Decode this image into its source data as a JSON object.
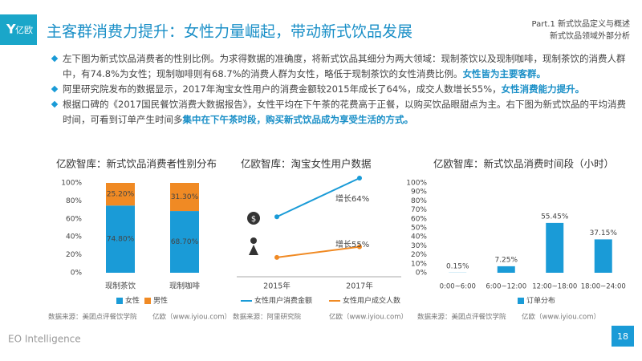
{
  "header": {
    "logo": "亿欧",
    "title": "主客群消费力提升：女性力量崛起，带动新式饮品发展",
    "part": "Part.1 新式饮品定义与概述",
    "subpart": "新式饮品领域外部分析"
  },
  "bullets": [
    [
      {
        "text": "左下图为新式饮品消费者的性别比例。为求得数据的准确度，将新式饮品其细分为两大领域：现制茶饮以及现制咖啡，现制茶饮的消费人群中，有74.8%为女性；现制咖啡则有68.7%的消费人群为女性，略低于现制茶饮的女性消费比例。",
        "bold": false
      },
      {
        "text": "女性皆为主要客群。",
        "bold": true
      }
    ],
    [
      {
        "text": "阿里研究院发布的数据显示，2017年淘宝女性用户的消费金额较2015年成长了64%，成交人数增长55%，",
        "bold": false
      },
      {
        "text": "女性消费能力提升。",
        "bold": true
      }
    ],
    [
      {
        "text": "根据口碑的《2017国民餐饮消费大数据报告》，女性平均在下午茶的花费高于正餐，以购买饮品眼甜点为主。右下图为新式饮品的平均消费时间，可看到订单产生时间多",
        "bold": false
      },
      {
        "text": "集中在下午茶时段，购买新式饮品成为享受生活的方式。",
        "bold": true
      }
    ]
  ],
  "chart_data": [
    {
      "type": "stacked_bar",
      "title": "亿欧智库：新式饮品消费者性别分布",
      "categories": [
        "现制茶饮",
        "现制咖啡"
      ],
      "series": [
        {
          "name": "女性",
          "color": "#1a9bd7",
          "values": [
            74.8,
            68.7
          ],
          "value_labels": [
            "74.80%",
            "68.70%"
          ]
        },
        {
          "name": "男性",
          "color": "#f08a24",
          "values": [
            25.2,
            31.3
          ],
          "value_labels": [
            "25.20%",
            "31.30%"
          ]
        }
      ],
      "ylim": [
        0,
        100
      ],
      "yticks": [
        {
          "value": 0,
          "label": "0%"
        },
        {
          "value": 20,
          "label": "20%"
        },
        {
          "value": 40,
          "label": "40%"
        },
        {
          "value": 60,
          "label": "60%"
        },
        {
          "value": 80,
          "label": "80%"
        },
        {
          "value": 100,
          "label": "100%"
        }
      ],
      "sources": [
        "数据来源：美团点评餐饮学院",
        "亿欧（www.iyiou.com）"
      ]
    },
    {
      "type": "line",
      "title": "亿欧智库：淘宝女性用户数据",
      "categories": [
        "2015年",
        "2017年"
      ],
      "series": [
        {
          "name": "女性用户消费金额",
          "color": "#1a9bd7",
          "values": [
            62,
            102
          ]
        },
        {
          "name": "女性用户成交人数",
          "color": "#f08a24",
          "values": [
            20,
            31
          ]
        }
      ],
      "annotations": [
        "增长64%",
        "增长55%"
      ],
      "sources": [
        "数据来源：阿里研究院",
        "亿欧（www.iyiou.com）"
      ]
    },
    {
      "type": "bar",
      "title": "亿欧智库：新式饮品消费时间段（小时）",
      "categories": [
        "0:00~6:00",
        "6:00~12:00",
        "12:00~18:00",
        "18:00~24:00"
      ],
      "series": [
        {
          "name": "订单分布",
          "color": "#1a9bd7",
          "values": [
            0.15,
            7.25,
            55.45,
            37.15
          ],
          "value_labels": [
            "0.15%",
            "7.25%",
            "55.45%",
            "37.15%"
          ]
        }
      ],
      "ylim": [
        0,
        100
      ],
      "yticks": [
        {
          "value": 0,
          "label": "0%"
        },
        {
          "value": 10,
          "label": "10%"
        },
        {
          "value": 20,
          "label": "20%"
        },
        {
          "value": 30,
          "label": "30%"
        },
        {
          "value": 40,
          "label": "40%"
        },
        {
          "value": 50,
          "label": "50%"
        },
        {
          "value": 60,
          "label": "60%"
        },
        {
          "value": 70,
          "label": "70%"
        },
        {
          "value": 80,
          "label": "80%"
        },
        {
          "value": 90,
          "label": "90%"
        },
        {
          "value": 100,
          "label": "100%"
        }
      ],
      "sources": [
        "数据来源：美团点评餐饮学院",
        "亿欧（www.iyiou.com）"
      ]
    }
  ],
  "footer": {
    "brand": "EO Intelligence",
    "page": "18"
  }
}
